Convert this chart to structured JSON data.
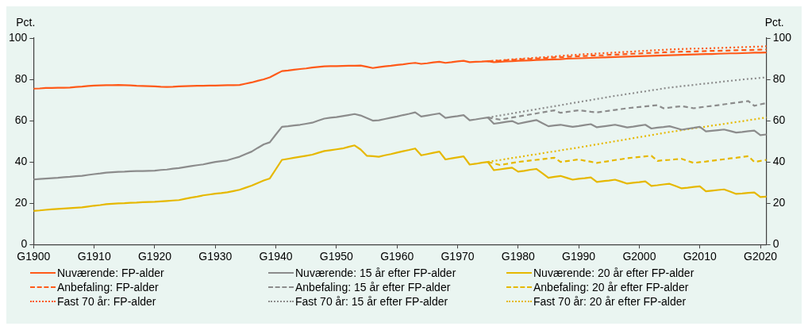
{
  "chart_data": {
    "type": "line",
    "ylabel": "Pct.",
    "y2label": "Pct.",
    "categories": [
      "G1900",
      null,
      null,
      null,
      null,
      null,
      null,
      null,
      null,
      null,
      "G1910",
      null,
      null,
      null,
      null,
      null,
      null,
      null,
      null,
      null,
      "G1920",
      null,
      null,
      null,
      null,
      null,
      null,
      null,
      null,
      null,
      "G1930",
      null,
      null,
      null,
      null,
      null,
      null,
      null,
      null,
      null,
      "G1940",
      null,
      null,
      null,
      null,
      null,
      null,
      null,
      null,
      null,
      "G1950",
      null,
      null,
      null,
      null,
      null,
      null,
      null,
      null,
      null,
      "G1960",
      null,
      null,
      null,
      null,
      null,
      null,
      null,
      null,
      null,
      "G1970",
      null,
      null,
      null,
      null,
      null,
      null,
      null,
      null,
      null,
      "G1980",
      null,
      null,
      null,
      null,
      null,
      null,
      null,
      null,
      null,
      "G1990",
      null,
      null,
      null,
      null,
      null,
      null,
      null,
      null,
      null,
      "G2000",
      null,
      null,
      null,
      null,
      null,
      null,
      null,
      null,
      null,
      "G2010",
      null,
      null,
      null,
      null,
      null,
      null,
      null,
      null,
      null,
      "G2020",
      null
    ],
    "ylim": [
      0,
      100
    ],
    "yticks": [
      0,
      20,
      40,
      60,
      80,
      100
    ],
    "y2lim": [
      0,
      100
    ],
    "y2ticks": [
      0,
      20,
      40,
      60,
      80,
      100
    ],
    "grid": false,
    "legend": "bottom",
    "marker": "none",
    "series": [
      {
        "name": "Nuværende: FP-alder",
        "color": "#ff5a19",
        "line_style": "solid",
        "values": [
          75.5,
          75.6,
          75.8,
          75.8,
          75.9,
          75.9,
          76,
          76.3,
          76.5,
          76.8,
          77,
          77.1,
          77.2,
          77.2,
          77.3,
          77.2,
          77.1,
          76.9,
          76.8,
          76.7,
          76.6,
          76.4,
          76.3,
          76.4,
          76.6,
          76.7,
          76.8,
          76.9,
          76.9,
          77,
          77,
          77.1,
          77.2,
          77.2,
          77.3,
          77.9,
          78.5,
          79.3,
          80,
          81,
          82.5,
          84,
          84.3,
          84.7,
          85,
          85.3,
          85.7,
          86,
          86.3,
          86.4,
          86.4,
          86.5,
          86.6,
          86.6,
          86.7,
          86.1,
          85.5,
          85.9,
          86.3,
          86.6,
          87,
          87.3,
          87.7,
          88,
          87.5,
          87.8,
          88.2,
          88.5,
          88,
          88.3,
          88.7,
          89,
          88.3,
          88.5,
          88.6,
          88.8,
          88.3,
          88.5,
          88.7,
          88.8,
          89,
          89.1,
          89.2,
          89.4,
          89.5,
          89.6,
          89.7,
          89.8,
          90,
          90.1,
          90.2,
          90.3,
          90.4,
          90.5,
          90.6,
          90.7,
          90.8,
          90.9,
          91,
          91.1,
          91.2,
          91.3,
          91.4,
          91.5,
          91.6,
          91.7,
          91.8,
          91.9,
          92,
          92.1,
          92.2,
          92.3,
          92.3,
          92.4,
          92.5,
          92.6,
          92.6,
          92.7,
          92.8,
          92.9,
          92.9,
          93
        ]
      },
      {
        "name": "Nuværende: 15 år efter FP-alder",
        "color": "#8c8c8c",
        "line_style": "solid",
        "values": [
          31.5,
          31.7,
          31.9,
          32.1,
          32.3,
          32.6,
          32.8,
          33.1,
          33.3,
          33.7,
          34.1,
          34.4,
          34.8,
          35,
          35.2,
          35.3,
          35.5,
          35.6,
          35.6,
          35.7,
          35.8,
          36.1,
          36.3,
          36.7,
          37,
          37.5,
          38,
          38.4,
          38.8,
          39.4,
          40,
          40.4,
          40.8,
          41.7,
          42.5,
          43.8,
          45,
          46.8,
          48.5,
          49.5,
          53.3,
          57,
          57.3,
          57.7,
          58,
          58.5,
          59,
          60,
          61,
          61.4,
          61.7,
          62.2,
          62.7,
          63.2,
          62.5,
          61.3,
          60,
          60.2,
          60.8,
          61.4,
          62,
          62.7,
          63.3,
          64,
          62,
          62.5,
          63,
          63.5,
          61.3,
          61.8,
          62.2,
          62.7,
          60.2,
          60.6,
          61.1,
          61.5,
          58.5,
          58.9,
          59.4,
          59.8,
          58.5,
          59.1,
          59.7,
          60.3,
          58.8,
          57.3,
          57.7,
          58,
          57.5,
          57,
          57.4,
          57.9,
          58.3,
          56.8,
          57.2,
          57.6,
          58,
          57.4,
          56.7,
          57.1,
          57.6,
          58,
          56.2,
          56.6,
          56.9,
          57.3,
          56.5,
          55.6,
          56.1,
          56.5,
          57,
          54.8,
          55.1,
          55.4,
          55.7,
          55,
          54.2,
          54.5,
          54.9,
          55.2,
          53,
          53.3
        ]
      },
      {
        "name": "Nuværende: 20 år efter FP-alder",
        "color": "#e6b800",
        "line_style": "solid",
        "values": [
          16.3,
          16.5,
          16.8,
          17,
          17.2,
          17.4,
          17.6,
          17.8,
          18,
          18.4,
          18.8,
          19.1,
          19.5,
          19.7,
          19.9,
          20,
          20.2,
          20.3,
          20.5,
          20.6,
          20.7,
          20.9,
          21.1,
          21.3,
          21.5,
          22.1,
          22.7,
          23.2,
          23.8,
          24.2,
          24.6,
          24.9,
          25.3,
          25.9,
          26.5,
          27.5,
          28.5,
          29.8,
          31,
          32,
          36.5,
          41,
          41.5,
          42,
          42.5,
          43,
          43.5,
          44.4,
          45.3,
          45.7,
          46.1,
          46.5,
          47.3,
          48,
          46,
          43,
          42.8,
          42.5,
          43.2,
          43.8,
          44.5,
          45.2,
          45.8,
          46.5,
          43.2,
          43.8,
          44.4,
          45,
          41.2,
          41.7,
          42.2,
          42.7,
          38.7,
          39.1,
          39.6,
          40,
          36,
          36.4,
          36.8,
          37.2,
          35.3,
          35.7,
          36.2,
          36.6,
          34.5,
          32.3,
          32.8,
          33.2,
          32.3,
          31.4,
          31.8,
          32.1,
          32.5,
          30.3,
          30.7,
          31,
          31.4,
          30.5,
          29.5,
          29.9,
          30.2,
          30.6,
          28.4,
          28.7,
          29.1,
          29.4,
          28.3,
          27.2,
          27.5,
          27.9,
          28.2,
          25.8,
          26.1,
          26.4,
          26.7,
          25.6,
          24.5,
          24.7,
          25,
          25.2,
          23,
          23.2
        ]
      },
      {
        "name": "Anbefaling: FP-alder",
        "color": "#ff5a19",
        "line_style": "dashed",
        "values": [
          null,
          null,
          null,
          null,
          null,
          null,
          null,
          null,
          null,
          null,
          null,
          null,
          null,
          null,
          null,
          null,
          null,
          null,
          null,
          null,
          null,
          null,
          null,
          null,
          null,
          null,
          null,
          null,
          null,
          null,
          null,
          null,
          null,
          null,
          null,
          null,
          null,
          null,
          null,
          null,
          null,
          null,
          null,
          null,
          null,
          null,
          null,
          null,
          null,
          null,
          null,
          null,
          null,
          null,
          null,
          null,
          null,
          null,
          null,
          null,
          null,
          null,
          null,
          null,
          null,
          null,
          null,
          null,
          null,
          null,
          null,
          null,
          null,
          null,
          null,
          88.8,
          89,
          89.1,
          89.3,
          89.4,
          89.6,
          89.8,
          89.9,
          90.1,
          90.2,
          90.4,
          90.6,
          90.7,
          90.9,
          91,
          91.2,
          91.3,
          91.5,
          91.6,
          91.7,
          91.9,
          92,
          92.1,
          92.3,
          92.4,
          92.5,
          92.7,
          92.8,
          92.9,
          93.1,
          93.2,
          93.3,
          93.4,
          93.4,
          93.5,
          93.6,
          93.7,
          93.8,
          93.8,
          93.9,
          94,
          94.1,
          94.2,
          94.2,
          94.3,
          94.4,
          94.5
        ]
      },
      {
        "name": "Anbefaling: 15 år efter FP-alder",
        "color": "#8c8c8c",
        "line_style": "dashed",
        "values": [
          null,
          null,
          null,
          null,
          null,
          null,
          null,
          null,
          null,
          null,
          null,
          null,
          null,
          null,
          null,
          null,
          null,
          null,
          null,
          null,
          null,
          null,
          null,
          null,
          null,
          null,
          null,
          null,
          null,
          null,
          null,
          null,
          null,
          null,
          null,
          null,
          null,
          null,
          null,
          null,
          null,
          null,
          null,
          null,
          null,
          null,
          null,
          null,
          null,
          null,
          null,
          null,
          null,
          null,
          null,
          null,
          null,
          null,
          null,
          null,
          null,
          null,
          null,
          null,
          null,
          null,
          null,
          null,
          null,
          null,
          null,
          null,
          null,
          null,
          null,
          61.5,
          61,
          60.5,
          61,
          61.5,
          62,
          62.5,
          63,
          63.5,
          64,
          64.5,
          65,
          63.8,
          64.2,
          64.6,
          65,
          64.7,
          64.3,
          64,
          64.4,
          64.8,
          65.2,
          65.6,
          66,
          66.3,
          66.6,
          66.9,
          67.2,
          67.5,
          66,
          66.3,
          66.7,
          67,
          66.5,
          66,
          66.4,
          66.8,
          67.1,
          67.5,
          67.9,
          68.3,
          68.7,
          69.1,
          69.5,
          67.2,
          67.9,
          68.5
        ]
      },
      {
        "name": "Anbefaling: 20 år efter FP-alder",
        "color": "#e6b800",
        "line_style": "dashed",
        "values": [
          null,
          null,
          null,
          null,
          null,
          null,
          null,
          null,
          null,
          null,
          null,
          null,
          null,
          null,
          null,
          null,
          null,
          null,
          null,
          null,
          null,
          null,
          null,
          null,
          null,
          null,
          null,
          null,
          null,
          null,
          null,
          null,
          null,
          null,
          null,
          null,
          null,
          null,
          null,
          null,
          null,
          null,
          null,
          null,
          null,
          null,
          null,
          null,
          null,
          null,
          null,
          null,
          null,
          null,
          null,
          null,
          null,
          null,
          null,
          null,
          null,
          null,
          null,
          null,
          null,
          null,
          null,
          null,
          null,
          null,
          null,
          null,
          null,
          null,
          null,
          40,
          39.3,
          38.5,
          39,
          39.5,
          40,
          40.3,
          40.7,
          41,
          41.3,
          41.7,
          42,
          40,
          40.4,
          40.8,
          41.2,
          40.6,
          40.1,
          39.5,
          40,
          40.4,
          40.9,
          41.3,
          41.8,
          42.1,
          42.4,
          42.7,
          43,
          40.5,
          40.8,
          41,
          41.3,
          41.5,
          40.5,
          39.5,
          39.9,
          40.2,
          40.6,
          40.9,
          41.3,
          41.7,
          42,
          42.4,
          42.8,
          40,
          40.5,
          41
        ]
      },
      {
        "name": "Fast 70 år: FP-alder",
        "color": "#ff5a19",
        "line_style": "dotted",
        "values": [
          null,
          null,
          null,
          null,
          null,
          null,
          null,
          null,
          null,
          null,
          null,
          null,
          null,
          null,
          null,
          null,
          null,
          null,
          null,
          null,
          null,
          null,
          null,
          null,
          null,
          null,
          null,
          null,
          null,
          null,
          null,
          null,
          null,
          null,
          null,
          null,
          null,
          null,
          null,
          null,
          null,
          null,
          null,
          null,
          null,
          null,
          null,
          null,
          null,
          null,
          null,
          null,
          null,
          null,
          null,
          null,
          null,
          null,
          null,
          null,
          null,
          null,
          null,
          null,
          null,
          null,
          null,
          null,
          null,
          null,
          null,
          null,
          null,
          null,
          null,
          88.8,
          89,
          89.2,
          89.4,
          89.7,
          89.9,
          90.1,
          90.3,
          90.5,
          90.7,
          90.9,
          91.1,
          91.4,
          91.6,
          91.8,
          92,
          92.2,
          92.3,
          92.5,
          92.7,
          92.8,
          93,
          93.2,
          93.3,
          93.5,
          93.7,
          93.8,
          94,
          94.2,
          94.3,
          94.5,
          94.6,
          94.7,
          94.8,
          94.9,
          94.9,
          95,
          95.1,
          95.2,
          95.3,
          95.4,
          95.5,
          95.6,
          95.7,
          95.8,
          95.9,
          96
        ]
      },
      {
        "name": "Fast 70 år: 15 år efter FP-alder",
        "color": "#8c8c8c",
        "line_style": "dotted",
        "values": [
          null,
          null,
          null,
          null,
          null,
          null,
          null,
          null,
          null,
          null,
          null,
          null,
          null,
          null,
          null,
          null,
          null,
          null,
          null,
          null,
          null,
          null,
          null,
          null,
          null,
          null,
          null,
          null,
          null,
          null,
          null,
          null,
          null,
          null,
          null,
          null,
          null,
          null,
          null,
          null,
          null,
          null,
          null,
          null,
          null,
          null,
          null,
          null,
          null,
          null,
          null,
          null,
          null,
          null,
          null,
          null,
          null,
          null,
          null,
          null,
          null,
          null,
          null,
          null,
          null,
          null,
          null,
          null,
          null,
          null,
          null,
          null,
          null,
          null,
          null,
          61.5,
          62,
          62.5,
          63,
          63.5,
          64,
          64.5,
          65,
          65.5,
          66,
          66.5,
          67,
          67.5,
          68,
          68.5,
          69,
          69.5,
          70,
          70.5,
          71,
          71.5,
          72,
          72.4,
          72.9,
          73.3,
          73.8,
          74.2,
          74.7,
          75.1,
          75.6,
          76,
          76.3,
          76.7,
          77,
          77.3,
          77.7,
          78,
          78.3,
          78.6,
          79,
          79.3,
          79.6,
          79.9,
          80.2,
          80.4,
          80.7,
          81
        ]
      },
      {
        "name": "Fast 70 år: 20 år efter FP-alder",
        "color": "#e6b800",
        "line_style": "dotted",
        "values": [
          null,
          null,
          null,
          null,
          null,
          null,
          null,
          null,
          null,
          null,
          null,
          null,
          null,
          null,
          null,
          null,
          null,
          null,
          null,
          null,
          null,
          null,
          null,
          null,
          null,
          null,
          null,
          null,
          null,
          null,
          null,
          null,
          null,
          null,
          null,
          null,
          null,
          null,
          null,
          null,
          null,
          null,
          null,
          null,
          null,
          null,
          null,
          null,
          null,
          null,
          null,
          null,
          null,
          null,
          null,
          null,
          null,
          null,
          null,
          null,
          null,
          null,
          null,
          null,
          null,
          null,
          null,
          null,
          null,
          null,
          null,
          null,
          null,
          null,
          null,
          40,
          40.5,
          40.9,
          41.4,
          41.9,
          42.3,
          42.8,
          43.3,
          43.7,
          44.2,
          44.7,
          45.1,
          45.6,
          46.1,
          46.5,
          47,
          47.5,
          48,
          48.5,
          49,
          49.5,
          50,
          50.5,
          51,
          51.5,
          52,
          52.5,
          53,
          53.5,
          54,
          54.5,
          54.9,
          55.4,
          55.8,
          56.3,
          56.7,
          57.1,
          57.6,
          58,
          58.4,
          58.9,
          59.3,
          59.7,
          60.2,
          60.6,
          61.1,
          61.5
        ]
      }
    ]
  }
}
